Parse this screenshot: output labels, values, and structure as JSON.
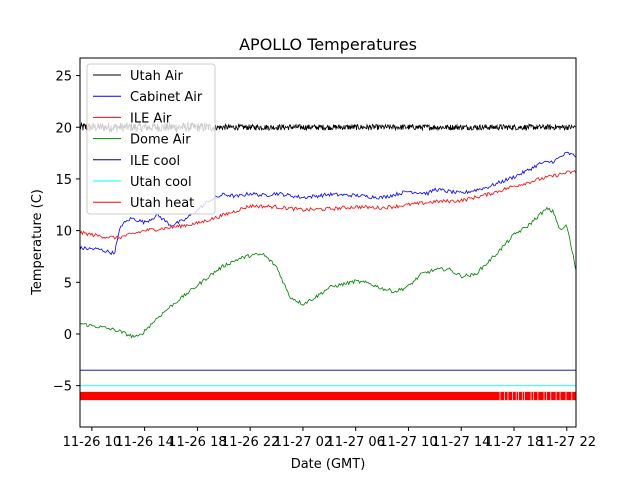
{
  "chart_data": {
    "type": "line",
    "title": "APOLLO Temperatures",
    "xlabel": "Date (GMT)",
    "ylabel": "Temperature (C)",
    "xlim": [
      9.1,
      46.7
    ],
    "ylim": [
      -9,
      26.7
    ],
    "yticks": [
      -5,
      0,
      5,
      10,
      15,
      20,
      25
    ],
    "xticks": [
      {
        "at": 10,
        "label": "11-26 10"
      },
      {
        "at": 14,
        "label": "11-26 14"
      },
      {
        "at": 18,
        "label": "11-26 18"
      },
      {
        "at": 22,
        "label": "11-26 22"
      },
      {
        "at": 26,
        "label": "11-27 02"
      },
      {
        "at": 30,
        "label": "11-27 06"
      },
      {
        "at": 34,
        "label": "11-27 10"
      },
      {
        "at": 38,
        "label": "11-27 14"
      },
      {
        "at": 42,
        "label": "11-27 18"
      },
      {
        "at": 46,
        "label": "11-27 22"
      }
    ],
    "x_units": "hours since 11-26 00:00 GMT",
    "legend_position": "top-left",
    "series": [
      {
        "name": "Utah Air",
        "color": "#000000",
        "style": "noisy-band",
        "noise": 0.45,
        "x": [
          9.1,
          14,
          18,
          22,
          26,
          30,
          34,
          38,
          42,
          46.7
        ],
        "y": [
          20,
          20,
          20,
          20,
          20,
          20,
          20,
          20,
          20,
          20
        ]
      },
      {
        "name": "Cabinet Air",
        "color": "#0000ff",
        "style": "line",
        "x": [
          9.1,
          10.5,
          11.7,
          12.2,
          13.0,
          14.0,
          15.0,
          16.0,
          17.0,
          18.0,
          19.0,
          20.0,
          21.0,
          22.0,
          23.0,
          24.0,
          26.0,
          28.0,
          30.0,
          32.0,
          34.0,
          35.5,
          36.0,
          38.0,
          40.0,
          42.0,
          43.0,
          44.0,
          45.0,
          46.0,
          46.7
        ],
        "y": [
          8.3,
          8.2,
          7.8,
          10.5,
          11.2,
          10.8,
          11.5,
          10.5,
          11.0,
          12.0,
          13.0,
          13.5,
          13.3,
          13.6,
          13.4,
          13.6,
          13.2,
          13.5,
          13.4,
          13.2,
          13.8,
          13.6,
          14.0,
          13.6,
          14.2,
          15.2,
          15.8,
          16.5,
          16.7,
          17.5,
          17.2
        ]
      },
      {
        "name": "ILE Air",
        "color": "#ff0000",
        "style": "line",
        "x": [
          9.1,
          11.0,
          12.0,
          14.0,
          16.0,
          18.0,
          20.0,
          22.0,
          24.0,
          26.0,
          28.0,
          30.0,
          32.0,
          34.0,
          36.0,
          38.0,
          40.0,
          42.0,
          44.0,
          46.0,
          46.7
        ],
        "y": [
          9.8,
          9.4,
          9.3,
          10.0,
          10.3,
          10.7,
          11.5,
          12.4,
          12.3,
          12.0,
          12.1,
          12.3,
          12.2,
          12.5,
          12.8,
          12.9,
          13.5,
          14.3,
          15.0,
          15.6,
          15.7
        ]
      },
      {
        "name": "Dome Air",
        "color": "#008000",
        "style": "line",
        "x": [
          9.1,
          10.0,
          11.0,
          12.0,
          13.0,
          13.5,
          14.0,
          15.0,
          16.0,
          17.0,
          18.0,
          19.0,
          20.0,
          21.0,
          22.0,
          23.0,
          24.0,
          25.0,
          26.0,
          27.0,
          28.0,
          29.0,
          30.0,
          31.0,
          32.0,
          33.0,
          34.0,
          35.0,
          36.0,
          37.0,
          38.0,
          39.0,
          40.0,
          41.0,
          42.0,
          43.0,
          44.0,
          44.5,
          45.0,
          45.5,
          46.0,
          46.7
        ],
        "y": [
          1.0,
          0.8,
          0.6,
          0.3,
          -0.2,
          -0.3,
          0.3,
          1.6,
          2.7,
          3.7,
          4.7,
          5.7,
          6.6,
          7.2,
          7.6,
          7.7,
          6.5,
          3.6,
          2.9,
          3.6,
          4.5,
          4.8,
          5.1,
          4.9,
          4.4,
          4.1,
          4.6,
          5.8,
          6.2,
          6.3,
          5.6,
          5.7,
          6.9,
          8.2,
          9.6,
          10.4,
          11.6,
          12.1,
          11.8,
          10.0,
          10.5,
          6.2
        ]
      },
      {
        "name": "ILE cool",
        "color": "#00008b",
        "style": "line",
        "x": [
          9.1,
          46.7
        ],
        "y": [
          -3.5,
          -3.5
        ]
      },
      {
        "name": "Utah cool",
        "color": "#00ffff",
        "style": "line",
        "x": [
          9.1,
          46.7
        ],
        "y": [
          -5.0,
          -5.0
        ]
      },
      {
        "name": "Utah heat",
        "color": "#ff0000",
        "style": "switching-band",
        "x": [
          9.1,
          46.7
        ],
        "y_low": -6.4,
        "y_high": -5.6
      }
    ]
  }
}
